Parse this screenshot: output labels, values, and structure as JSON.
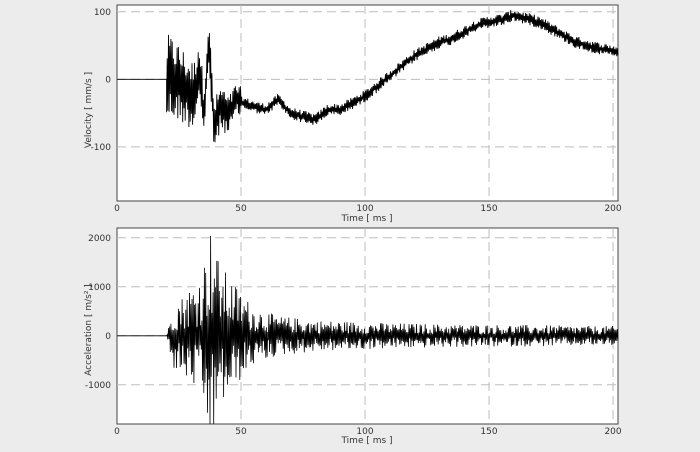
{
  "chart_data": [
    {
      "type": "line",
      "title": "",
      "xlabel": "Time [ ms ]",
      "ylabel": "Velocity [ mm/s ]",
      "xlim": [
        0,
        202
      ],
      "ylim": [
        -180,
        110
      ],
      "x_ticks": [
        0,
        50,
        100,
        150,
        200
      ],
      "y_ticks": [
        100,
        0,
        -100
      ],
      "grid": true,
      "line_color": "#000000",
      "x": [
        0,
        20,
        22,
        25,
        28,
        31,
        33,
        35,
        37,
        39,
        42,
        45,
        48,
        51,
        55,
        60,
        65,
        70,
        75,
        80,
        85,
        90,
        95,
        100,
        105,
        110,
        115,
        120,
        125,
        130,
        135,
        140,
        145,
        150,
        155,
        160,
        165,
        170,
        175,
        180,
        185,
        190,
        195,
        200,
        202
      ],
      "y": [
        0,
        0,
        2,
        -5,
        -15,
        -25,
        20,
        -50,
        60,
        -70,
        -40,
        -55,
        -30,
        -35,
        -40,
        -45,
        -30,
        -50,
        -55,
        -60,
        -45,
        -45,
        -35,
        -25,
        -10,
        5,
        20,
        35,
        45,
        55,
        60,
        70,
        80,
        85,
        88,
        95,
        90,
        85,
        75,
        65,
        55,
        50,
        45,
        42,
        40
      ]
    },
    {
      "type": "line",
      "title": "",
      "xlabel": "Time [ ms ]",
      "ylabel": "Acceleration [ m/s² ]",
      "xlim": [
        0,
        202
      ],
      "ylim": [
        -1800,
        2200
      ],
      "x_ticks": [
        0,
        50,
        100,
        150,
        200
      ],
      "y_ticks": [
        2000,
        1000,
        0,
        -1000
      ],
      "grid": true,
      "line_color": "#000000",
      "x": [
        0,
        20,
        23,
        26,
        29,
        32,
        35,
        37,
        39,
        41,
        44,
        47,
        50,
        55,
        60,
        65,
        70,
        75,
        80,
        90,
        100,
        110,
        120,
        130,
        140,
        150,
        160,
        170,
        180,
        190,
        200,
        202
      ],
      "y_envelope": [
        0,
        0,
        700,
        800,
        1000,
        1100,
        1500,
        2200,
        2200,
        1500,
        1300,
        1100,
        900,
        600,
        500,
        400,
        380,
        350,
        320,
        300,
        280,
        260,
        250,
        240,
        230,
        230,
        220,
        220,
        210,
        200,
        200,
        200
      ]
    }
  ]
}
